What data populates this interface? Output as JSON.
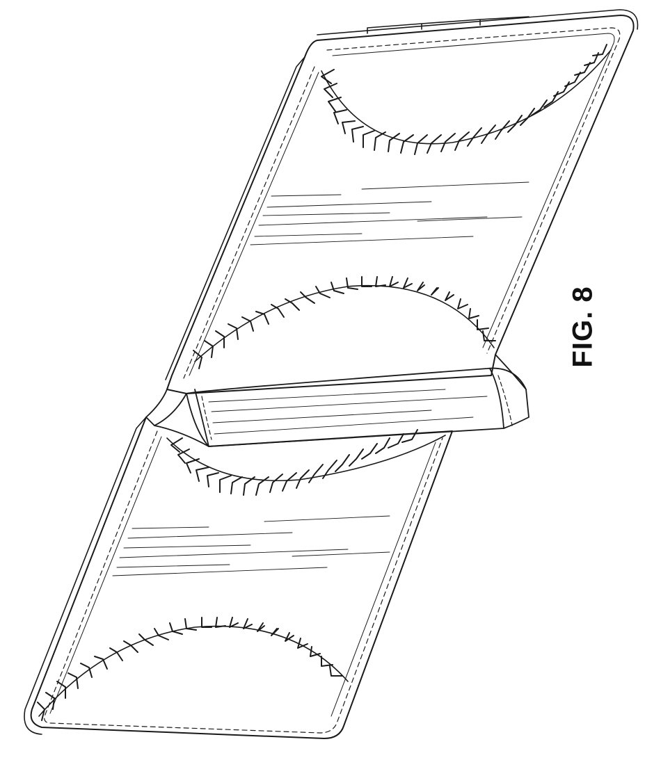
{
  "figure": {
    "label": "FIG. 8"
  },
  "drawing": {
    "line_color": "#1a1a1a",
    "background": "#ffffff",
    "components": {
      "upper_panel": {
        "name": "upper-panel",
        "stitch_seams": 2
      },
      "lower_panel": {
        "name": "lower-panel",
        "stitch_seams": 2
      },
      "hinge": {
        "name": "hinge-fold"
      }
    }
  }
}
